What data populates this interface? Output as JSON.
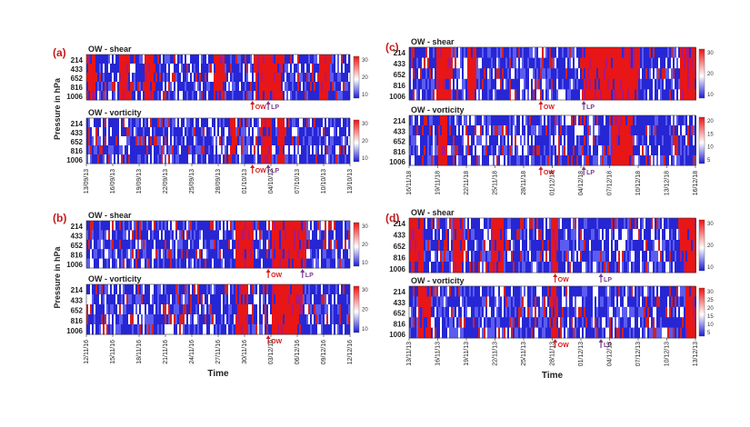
{
  "chart_data": [
    {
      "type": "heatmap",
      "panel_label": "(a)",
      "ylabel": "Pressure in hPa",
      "xlabel": "",
      "ytick_labels": [
        "214",
        "433",
        "652",
        "816",
        "1006"
      ],
      "xtick_labels": [
        "13/09/13",
        "16/09/13",
        "19/09/13",
        "22/09/13",
        "25/09/13",
        "28/09/13",
        "01/10/13",
        "04/10/13",
        "07/10/13",
        "10/10/13",
        "13/10/13"
      ],
      "sub_panels": [
        {
          "title": "OW - shear",
          "colorbar_ticks": [
            "30",
            "20",
            "10"
          ],
          "colorbar_range": [
            0,
            30
          ],
          "annotations": [
            {
              "text": "OW",
              "x_index": 6.3
            },
            {
              "text": "LP",
              "x_index": 6.9
            }
          ],
          "red_bands": [
            [
              0.0,
              0.3
            ],
            [
              1.2,
              1.6
            ],
            [
              2.2,
              2.6
            ],
            [
              4.8,
              5.2
            ],
            [
              6.4,
              7.4
            ],
            [
              8.8,
              9.2
            ]
          ]
        },
        {
          "title": "OW - vorticity",
          "colorbar_ticks": [
            "30",
            "20",
            "10"
          ],
          "colorbar_range": [
            0,
            30
          ],
          "annotations": [
            {
              "text": "OW",
              "x_index": 6.3
            },
            {
              "text": "LP",
              "x_index": 6.9
            }
          ],
          "red_bands": [
            [
              6.6,
              7.0
            ],
            [
              7.2,
              7.5
            ],
            [
              5.4,
              5.6
            ]
          ]
        }
      ]
    },
    {
      "type": "heatmap",
      "panel_label": "(b)",
      "ylabel": "Pressure in hPa",
      "xlabel": "Time",
      "ytick_labels": [
        "214",
        "433",
        "652",
        "816",
        "1006"
      ],
      "xtick_labels": [
        "12/11/16",
        "15/11/16",
        "18/11/16",
        "21/11/16",
        "24/11/16",
        "27/11/16",
        "30/11/16",
        "03/12/16",
        "06/12/16",
        "09/12/16",
        "12/12/16"
      ],
      "sub_panels": [
        {
          "title": "OW - shear",
          "colorbar_ticks": [
            "30",
            "20",
            "10"
          ],
          "colorbar_range": [
            0,
            30
          ],
          "annotations": [
            {
              "text": "OW",
              "x_index": 6.9
            },
            {
              "text": "LP",
              "x_index": 8.2
            }
          ],
          "red_bands": [
            [
              5.6,
              6.3
            ],
            [
              7.0,
              8.3
            ]
          ]
        },
        {
          "title": "OW - vorticity",
          "colorbar_ticks": [
            "30",
            "20",
            "10"
          ],
          "colorbar_range": [
            0,
            30
          ],
          "annotations": [
            {
              "text": "OW",
              "x_index": 6.9
            }
          ],
          "red_bands": [
            [
              5.6,
              6.1
            ],
            [
              7.0,
              8.2
            ]
          ]
        }
      ]
    },
    {
      "type": "heatmap",
      "panel_label": "(c)",
      "ylabel": "",
      "xlabel": "",
      "ytick_labels": [
        "214",
        "433",
        "652",
        "816",
        "1006"
      ],
      "xtick_labels": [
        "16/11/18",
        "19/11/18",
        "22/11/18",
        "25/11/18",
        "28/11/18",
        "01/12/18",
        "04/12/18",
        "07/12/18",
        "10/12/18",
        "13/12/18",
        "16/12/18"
      ],
      "sub_panels": [
        {
          "title": "OW - shear",
          "colorbar_ticks": [
            "30",
            "20",
            "10"
          ],
          "colorbar_range": [
            0,
            30
          ],
          "annotations": [
            {
              "text": "OW",
              "x_index": 4.6
            },
            {
              "text": "LP",
              "x_index": 6.1
            }
          ],
          "red_bands": [
            [
              0.9,
              1.4
            ],
            [
              2.0,
              2.3
            ],
            [
              6.0,
              8.0
            ],
            [
              9.4,
              10.0
            ]
          ]
        },
        {
          "title": "OW - vorticity",
          "colorbar_ticks": [
            "20",
            "15",
            "10",
            "5"
          ],
          "colorbar_range": [
            0,
            20
          ],
          "annotations": [
            {
              "text": "OW",
              "x_index": 4.6
            },
            {
              "text": "LP",
              "x_index": 6.1
            }
          ],
          "red_bands": [
            [
              1.0,
              1.3
            ],
            [
              7.0,
              7.8
            ]
          ]
        }
      ]
    },
    {
      "type": "heatmap",
      "panel_label": "(d)",
      "ylabel": "",
      "xlabel": "Time",
      "ytick_labels": [
        "214",
        "433",
        "652",
        "816",
        "1006"
      ],
      "xtick_labels": [
        "13/11/13",
        "16/11/13",
        "19/11/13",
        "22/11/13",
        "25/11/13",
        "28/11/13",
        "01/12/13",
        "04/12/13",
        "07/12/13",
        "10/12/13",
        "13/12/13"
      ],
      "sub_panels": [
        {
          "title": "OW - shear",
          "colorbar_ticks": [
            "30",
            "20",
            "10"
          ],
          "colorbar_range": [
            0,
            30
          ],
          "annotations": [
            {
              "text": "OW",
              "x_index": 5.1
            },
            {
              "text": "LP",
              "x_index": 6.7
            }
          ],
          "red_bands": [
            [
              0.0,
              0.5
            ],
            [
              1.5,
              1.9
            ],
            [
              2.8,
              3.3
            ],
            [
              4.9,
              5.2
            ],
            [
              9.4,
              10.0
            ]
          ]
        },
        {
          "title": "OW - vorticity",
          "colorbar_ticks": [
            "30",
            "25",
            "20",
            "15",
            "10",
            "5"
          ],
          "colorbar_range": [
            0,
            30
          ],
          "annotations": [
            {
              "text": "OW",
              "x_index": 5.1
            },
            {
              "text": "LP",
              "x_index": 6.7
            }
          ],
          "red_bands": [
            [
              0.3,
              0.7
            ],
            [
              4.9,
              5.2
            ],
            [
              9.6,
              10.0
            ]
          ]
        }
      ]
    }
  ]
}
